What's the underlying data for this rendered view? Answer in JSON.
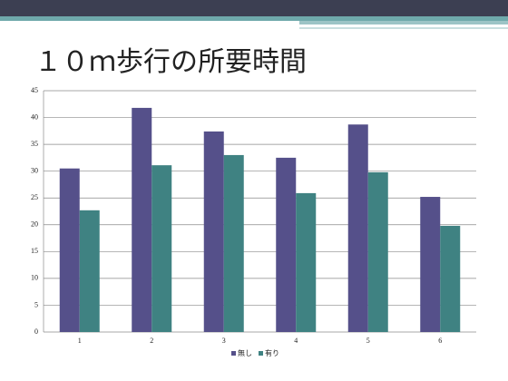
{
  "chart_data": {
    "type": "bar",
    "title": "１０ｍ歩行の所要時間",
    "categories": [
      "1",
      "2",
      "3",
      "4",
      "5",
      "6"
    ],
    "series": [
      {
        "name": "無し",
        "color": "#55508a",
        "values": [
          30.5,
          41.8,
          37.4,
          32.5,
          38.7,
          25.2
        ]
      },
      {
        "name": "有り",
        "color": "#3f8282",
        "values": [
          22.7,
          31.1,
          33.0,
          25.9,
          29.8,
          19.8
        ]
      }
    ],
    "ylim": [
      0,
      45
    ],
    "yticks": [
      0,
      5,
      10,
      15,
      20,
      25,
      30,
      35,
      40,
      45
    ],
    "grid": true,
    "legend": "bottom"
  }
}
